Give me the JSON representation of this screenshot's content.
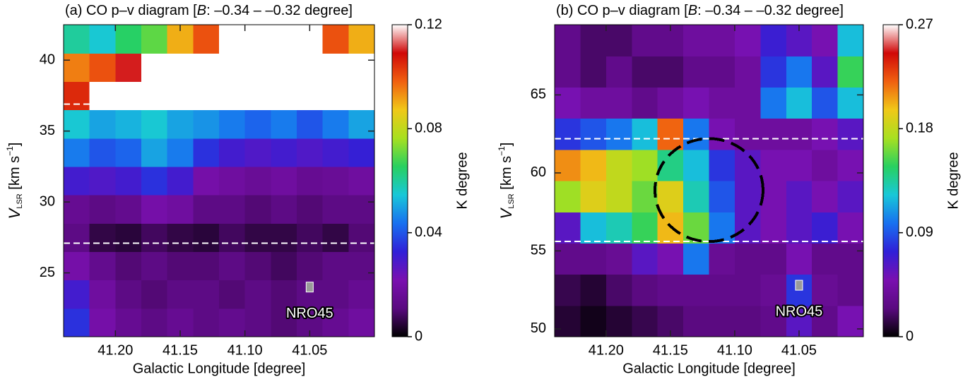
{
  "chart_data": [
    {
      "type": "heatmap",
      "title": {
        "pre": "(a) CO p–v diagram [",
        "var": "B",
        "post": ": –0.34 – –0.32 degree]"
      },
      "xlabel": "Galactic Longitude [degree]",
      "ylabel": {
        "var": "V",
        "sub": "LSR",
        "unit": " [km s",
        "sup": "−1",
        "end": "]"
      },
      "colorbar_label": "K degree",
      "xlim": [
        41.24,
        41.0
      ],
      "xticks": [
        {
          "value": 41.2,
          "label": "41.20"
        },
        {
          "value": 41.15,
          "label": "41.15"
        },
        {
          "value": 41.1,
          "label": "41.10"
        },
        {
          "value": 41.05,
          "label": "41.05"
        }
      ],
      "ylim": [
        20.5,
        42.5
      ],
      "yticks": [
        25,
        30,
        35,
        40
      ],
      "clim": [
        0,
        0.12
      ],
      "cticks": [
        0,
        0.04,
        0.08,
        0.12
      ],
      "colormap": [
        "#000000",
        "#5a0a80",
        "#7a10b0",
        "#3020d8",
        "#1870f0",
        "#18c8d8",
        "#28d060",
        "#a8e020",
        "#f0c818",
        "#f06010",
        "#d00808",
        "#ffffff"
      ],
      "x": [
        41.23,
        41.21,
        41.19,
        41.17,
        41.15,
        41.13,
        41.11,
        41.09,
        41.07,
        41.05,
        41.03,
        41.01
      ],
      "y": [
        21.5,
        23.5,
        25.5,
        27.5,
        29.5,
        31.5,
        33.5,
        35.5,
        37.5,
        39.5,
        41.5
      ],
      "z": [
        [
          0.035,
          0.02,
          0.015,
          0.012,
          0.015,
          0.012,
          0.014,
          0.012,
          0.01,
          0.012,
          0.015,
          0.018
        ],
        [
          0.03,
          0.018,
          0.012,
          0.01,
          0.012,
          0.012,
          0.01,
          0.012,
          0.01,
          0.012,
          0.012,
          0.015
        ],
        [
          0.02,
          0.014,
          0.01,
          0.012,
          0.01,
          0.01,
          0.012,
          0.01,
          0.008,
          0.01,
          0.012,
          0.012
        ],
        [
          0.012,
          0.006,
          0.005,
          0.008,
          0.006,
          0.005,
          0.008,
          0.006,
          0.006,
          0.008,
          0.006,
          0.01
        ],
        [
          0.015,
          0.012,
          0.014,
          0.02,
          0.018,
          0.012,
          0.012,
          0.01,
          0.012,
          0.01,
          0.012,
          0.012
        ],
        [
          0.03,
          0.028,
          0.03,
          0.035,
          0.03,
          0.02,
          0.018,
          0.016,
          0.018,
          0.015,
          0.016,
          0.018
        ],
        [
          0.045,
          0.04,
          0.042,
          0.05,
          0.045,
          0.035,
          0.03,
          0.028,
          0.03,
          0.028,
          0.03,
          0.032
        ],
        [
          0.055,
          0.05,
          0.052,
          0.055,
          0.05,
          0.048,
          0.045,
          0.042,
          0.045,
          0.04,
          0.045,
          0.05
        ],
        [
          0.105,
          0.12,
          0.12,
          0.12,
          0.12,
          0.12,
          0.12,
          0.12,
          0.12,
          0.12,
          0.12,
          0.12
        ],
        [
          0.095,
          0.1,
          0.11,
          0.13,
          0.15,
          0.15,
          0.15,
          0.15,
          0.15,
          0.15,
          0.15,
          0.14
        ],
        [
          0.06,
          0.055,
          0.065,
          0.07,
          0.09,
          0.1,
          0.13,
          0.15,
          0.15,
          0.14,
          0.1,
          0.09
        ]
      ],
      "hlines": [
        36.9,
        27.1
      ],
      "annotations": [
        {
          "text": "NRO45",
          "x": 41.05,
          "y": 24
        }
      ]
    },
    {
      "type": "heatmap",
      "title": {
        "pre": "(b) CO p–v diagram [",
        "var": "B",
        "post": ": –0.34 – –0.32 degree]"
      },
      "xlabel": "Galactic Longitude [degree]",
      "ylabel": {
        "var": "V",
        "sub": "LSR",
        "unit": " [km s",
        "sup": "−1",
        "end": "]"
      },
      "colorbar_label": "K degree",
      "xlim": [
        41.24,
        41.0
      ],
      "xticks": [
        {
          "value": 41.2,
          "label": "41.20"
        },
        {
          "value": 41.15,
          "label": "41.15"
        },
        {
          "value": 41.1,
          "label": "41.10"
        },
        {
          "value": 41.05,
          "label": "41.05"
        }
      ],
      "ylim": [
        49.5,
        69.5
      ],
      "yticks": [
        50,
        55,
        60,
        65
      ],
      "clim": [
        0,
        0.27
      ],
      "cticks": [
        0,
        0.09,
        0.18,
        0.27
      ],
      "colormap": [
        "#000000",
        "#5a0a80",
        "#7a10b0",
        "#3020d8",
        "#1870f0",
        "#18c8d8",
        "#28d060",
        "#a8e020",
        "#f0c818",
        "#f06010",
        "#d00808",
        "#ffffff"
      ],
      "x": [
        41.23,
        41.21,
        41.19,
        41.17,
        41.15,
        41.13,
        41.11,
        41.09,
        41.07,
        41.05,
        41.03,
        41.01
      ],
      "y": [
        50.5,
        52.5,
        54.5,
        56.5,
        58.5,
        60.5,
        62.5,
        64.5,
        66.5,
        68.5
      ],
      "z": [
        [
          0.01,
          0.005,
          0.01,
          0.015,
          0.02,
          0.025,
          0.025,
          0.025,
          0.03,
          0.06,
          0.03,
          0.05
        ],
        [
          0.015,
          0.01,
          0.02,
          0.025,
          0.03,
          0.03,
          0.03,
          0.03,
          0.035,
          0.08,
          0.035,
          0.03
        ],
        [
          0.03,
          0.03,
          0.035,
          0.06,
          0.05,
          0.1,
          0.035,
          0.03,
          0.03,
          0.05,
          0.03,
          0.03
        ],
        [
          0.06,
          0.12,
          0.13,
          0.15,
          0.2,
          0.16,
          0.1,
          0.06,
          0.05,
          0.06,
          0.07,
          0.05
        ],
        [
          0.17,
          0.19,
          0.18,
          0.16,
          0.19,
          0.13,
          0.09,
          0.06,
          0.05,
          0.06,
          0.05,
          0.06
        ],
        [
          0.21,
          0.2,
          0.18,
          0.17,
          0.14,
          0.12,
          0.08,
          0.06,
          0.05,
          0.05,
          0.04,
          0.05
        ],
        [
          0.08,
          0.09,
          0.1,
          0.12,
          0.22,
          0.1,
          0.05,
          0.04,
          0.04,
          0.04,
          0.05,
          0.06
        ],
        [
          0.05,
          0.04,
          0.04,
          0.03,
          0.04,
          0.05,
          0.04,
          0.04,
          0.1,
          0.12,
          0.09,
          0.12
        ],
        [
          0.03,
          0.02,
          0.03,
          0.02,
          0.02,
          0.03,
          0.03,
          0.04,
          0.08,
          0.1,
          0.06,
          0.15
        ],
        [
          0.03,
          0.02,
          0.02,
          0.03,
          0.03,
          0.04,
          0.04,
          0.05,
          0.07,
          0.06,
          0.05,
          0.12
        ]
      ],
      "hlines": [
        62.2,
        55.6
      ],
      "circle": {
        "x": 41.12,
        "y": 58.9,
        "rx": 0.042,
        "ry": 3.3
      },
      "annotations": [
        {
          "text": "NRO45",
          "x": 41.05,
          "y": 52.8
        }
      ]
    }
  ]
}
